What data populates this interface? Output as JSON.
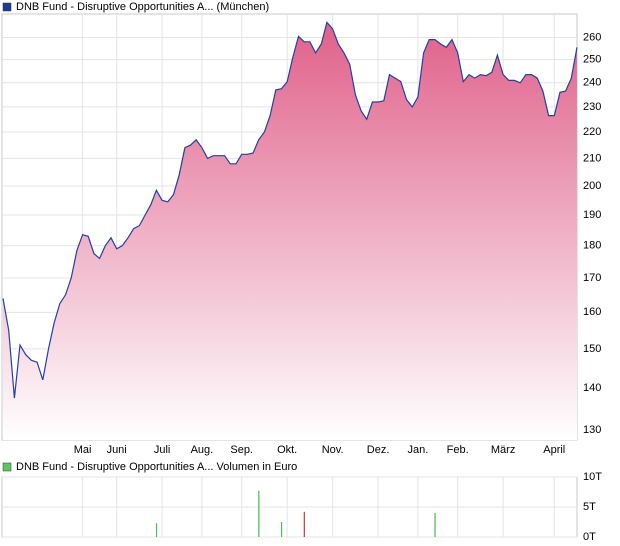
{
  "chart_data": [
    {
      "type": "area",
      "legend": "DNB Fund - Disruptive Opportunities A... (München)",
      "legend_color": "#1a3a99",
      "log_scale": true,
      "grid": true,
      "xticks": [
        {
          "value": 14,
          "label": "Mai"
        },
        {
          "value": 20,
          "label": "Juni"
        },
        {
          "value": 28,
          "label": "Juli"
        },
        {
          "value": 35,
          "label": "Aug."
        },
        {
          "value": 42,
          "label": "Sep."
        },
        {
          "value": 50,
          "label": "Okt."
        },
        {
          "value": 58,
          "label": "Nov."
        },
        {
          "value": 66,
          "label": "Dez."
        },
        {
          "value": 73,
          "label": "Jan."
        },
        {
          "value": 80,
          "label": "Feb."
        },
        {
          "value": 88,
          "label": "März"
        },
        {
          "value": 97,
          "label": "April"
        }
      ],
      "ylim": [
        127.7,
        271
      ],
      "yticks": [
        130,
        140,
        150,
        160,
        170,
        180,
        190,
        200,
        210,
        220,
        230,
        240,
        250,
        260
      ],
      "series": [
        {
          "color": "#2040a8",
          "fill_color": "#e0608a",
          "values": [
            164,
            155,
            137.5,
            151,
            148.5,
            147,
            146.5,
            142,
            150,
            157,
            162.5,
            165,
            170,
            178.5,
            183.5,
            183,
            177.5,
            176,
            180,
            182.5,
            179,
            180,
            182.5,
            185.5,
            186.5,
            190,
            193.5,
            198.5,
            195,
            194.5,
            197,
            204,
            214,
            215,
            217,
            214,
            210,
            211,
            211,
            211,
            208,
            208,
            211.5,
            211.5,
            212,
            217,
            220,
            226.5,
            237,
            237.5,
            240.5,
            251,
            260.5,
            258,
            258,
            253,
            257,
            267,
            264,
            257,
            253,
            248,
            235,
            228.5,
            225,
            232,
            232,
            232.5,
            243.5,
            242,
            240.5,
            233,
            230,
            234,
            253,
            259,
            259,
            257,
            255.5,
            259,
            253,
            240.5,
            243.5,
            242,
            243.5,
            243,
            244.5,
            252,
            243.5,
            241,
            241,
            240,
            243.5,
            243.5,
            242,
            236.5,
            226.5,
            226.5,
            236,
            236.5,
            242,
            255.5
          ]
        }
      ]
    },
    {
      "type": "bar",
      "legend": "DNB Fund - Disruptive Opportunities A... Volumen in Euro",
      "legend_color": "#5cc85c",
      "grid": true,
      "xlim": [
        0,
        101
      ],
      "ylim": [
        0,
        10
      ],
      "yticks": [
        {
          "value": 0,
          "label": "0T"
        },
        {
          "value": 5,
          "label": "5T"
        },
        {
          "value": 10,
          "label": "10T"
        }
      ],
      "x": [
        27,
        45,
        49,
        53,
        76
      ],
      "values": [
        2.3,
        7.7,
        2.5,
        4.2,
        4
      ],
      "colors": [
        "#44c044",
        "#44c044",
        "#44c044",
        "#d03030",
        "#44c044"
      ]
    }
  ]
}
